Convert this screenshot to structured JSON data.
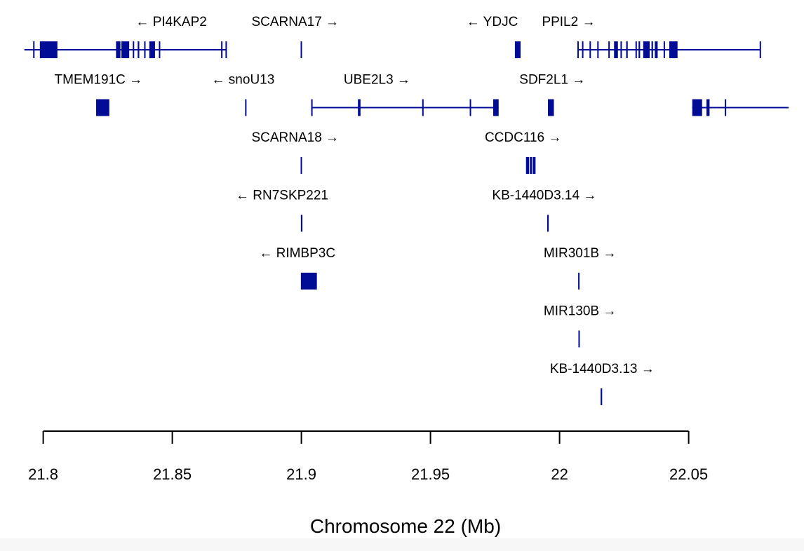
{
  "chart_data": {
    "type": "gene-track",
    "gene_color": "#000c96",
    "xlabel": "Chromosome 22 (Mb)",
    "xlim": [
      21.7925,
      22.0887
    ],
    "ticks": [
      {
        "value": 21.8,
        "label": "21.8"
      },
      {
        "value": 21.85,
        "label": "21.85"
      },
      {
        "value": 21.9,
        "label": "21.9"
      },
      {
        "value": 21.95,
        "label": "21.95"
      },
      {
        "value": 22.0,
        "label": "22"
      },
      {
        "value": 22.05,
        "label": "22.05"
      }
    ],
    "genes": [
      {
        "id": "pi4kap2",
        "label": "← PI4KAP2",
        "row": 0,
        "label_center": 21.8496,
        "span": [
          21.7927,
          21.8709
        ],
        "exons": [
          [
            21.7987,
            21.8055
          ],
          [
            21.8282,
            21.8299
          ],
          [
            21.8303,
            21.8333
          ],
          [
            21.8347,
            21.8352
          ],
          [
            21.8366,
            21.8372
          ],
          [
            21.8391,
            21.8396
          ],
          [
            21.8411,
            21.8433
          ],
          [
            21.8448,
            21.8453
          ],
          [
            21.8689,
            21.8692
          ],
          [
            21.8706,
            21.8709
          ],
          [
            21.7961,
            21.7964
          ]
        ]
      },
      {
        "id": "scarna17",
        "label": "SCARNA17 →",
        "row": 0,
        "label_center": 21.8976,
        "span": null,
        "exons": [
          [
            21.8997,
            21.9002
          ]
        ]
      },
      {
        "id": "ydjc",
        "label": "← YDJC",
        "row": 0,
        "label_center": 21.9739,
        "span": null,
        "exons": [
          [
            21.9827,
            21.9849
          ]
        ]
      },
      {
        "id": "ppil2",
        "label": "PPIL2 →",
        "row": 0,
        "label_center": 22.0035,
        "span": [
          22.0069,
          22.0778
        ],
        "exons": [
          [
            22.0069,
            22.0073
          ],
          [
            22.0087,
            22.0091
          ],
          [
            22.0116,
            22.012
          ],
          [
            22.0146,
            22.0149
          ],
          [
            22.0189,
            22.0193
          ],
          [
            22.0211,
            22.0226
          ],
          [
            22.0236,
            22.024
          ],
          [
            22.0258,
            22.0264
          ],
          [
            22.0294,
            22.0298
          ],
          [
            22.0306,
            22.0312
          ],
          [
            22.0324,
            22.0349
          ],
          [
            22.0356,
            22.0362
          ],
          [
            22.0369,
            22.038
          ],
          [
            22.0403,
            22.0408
          ],
          [
            22.0425,
            22.0457
          ],
          [
            22.0775,
            22.0778
          ]
        ]
      },
      {
        "id": "tmem191c",
        "label": "TMEM191C →",
        "row": 1,
        "label_center": 21.8214,
        "span": null,
        "exons": [
          [
            21.8205,
            21.8256
          ]
        ]
      },
      {
        "id": "snou13",
        "label": "← snoU13",
        "row": 1,
        "label_center": 21.8774,
        "span": null,
        "exons": [
          [
            21.8782,
            21.8786
          ]
        ]
      },
      {
        "id": "ube2l3",
        "label": "UBE2L3 →",
        "row": 1,
        "label_center": 21.9293,
        "span": [
          21.9038,
          21.9764
        ],
        "exons": [
          [
            21.9038,
            21.9042
          ],
          [
            21.9219,
            21.9229
          ],
          [
            21.9468,
            21.9472
          ],
          [
            21.9652,
            21.9656
          ],
          [
            21.9743,
            21.9764
          ]
        ]
      },
      {
        "id": "sdf2l1",
        "label": "SDF2L1 →",
        "row": 1,
        "label_center": 21.9972,
        "span": null,
        "exons": [
          [
            21.9955,
            21.9978
          ]
        ]
      },
      {
        "id": "row1-right-gene",
        "label": "",
        "row": 1,
        "label_center": null,
        "span": [
          22.0514,
          22.0887
        ],
        "exons": [
          [
            22.0514,
            22.0552
          ],
          [
            22.0569,
            22.0581
          ],
          [
            22.064,
            22.0644
          ]
        ]
      },
      {
        "id": "scarna18",
        "label": "SCARNA18 →",
        "row": 2,
        "label_center": 21.8976,
        "span": null,
        "exons": [
          [
            21.8997,
            21.9002
          ]
        ]
      },
      {
        "id": "ccdc116",
        "label": "CCDC116 →",
        "row": 2,
        "label_center": 21.9859,
        "span": null,
        "exons": [
          [
            21.987,
            21.9882
          ],
          [
            21.9885,
            21.9893
          ],
          [
            21.9896,
            21.9907
          ]
        ]
      },
      {
        "id": "rn7skp221",
        "label": "← RN7SKP221",
        "row": 3,
        "label_center": 21.8925,
        "span": null,
        "exons": [
          [
            21.8998,
            21.9004
          ]
        ]
      },
      {
        "id": "kb1440d314",
        "label": "KB-1440D3.14 →",
        "row": 3,
        "label_center": 21.9941,
        "span": null,
        "exons": [
          [
            21.9952,
            21.9958
          ]
        ]
      },
      {
        "id": "rimbp3c",
        "label": "← RIMBP3C",
        "row": 4,
        "label_center": 21.8984,
        "span": null,
        "exons": [
          [
            21.8998,
            21.906
          ]
        ]
      },
      {
        "id": "mir301b",
        "label": "MIR301B →",
        "row": 4,
        "label_center": 22.0079,
        "span": null,
        "exons": [
          [
            22.0072,
            22.0076
          ]
        ]
      },
      {
        "id": "mir130b",
        "label": "MIR130B →",
        "row": 5,
        "label_center": 22.0079,
        "span": null,
        "exons": [
          [
            22.0073,
            22.0077
          ]
        ]
      },
      {
        "id": "kb1440d313",
        "label": "KB-1440D3.13 →",
        "row": 6,
        "label_center": 22.0165,
        "span": null,
        "exons": [
          [
            22.0159,
            22.0165
          ]
        ]
      }
    ]
  }
}
